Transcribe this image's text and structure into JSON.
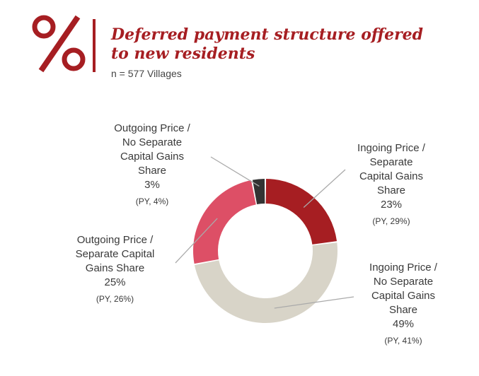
{
  "header": {
    "icon": "percent-icon",
    "title_line1": "Deferred payment structure offered",
    "title_line2": "to new residents",
    "subtitle": "n = 577 Villages"
  },
  "colors": {
    "accent": "#a61e22",
    "slice_ingoing_sep": "#a61e22",
    "slice_ingoing_nosep": "#d8d4c8",
    "slice_outgoing_sep": "#dd4f66",
    "slice_outgoing_nosep": "#333333",
    "leader": "#aaaaaa"
  },
  "chart_data": {
    "type": "pie",
    "categories": [
      "Ingoing Price / Separate Capital Gains Share",
      "Ingoing Price / No Separate Capital Gains Share",
      "Outgoing Price / Separate Capital Gains Share",
      "Outgoing Price / No Separate Capital Gains Share"
    ],
    "values": [
      23,
      49,
      25,
      3
    ],
    "prior_year": [
      29,
      41,
      26,
      4
    ],
    "value_labels": [
      "23%",
      "49%",
      "25%",
      "3%"
    ],
    "prior_year_labels": [
      "(PY, 29%)",
      "(PY, 41%)",
      "(PY, 26%)",
      "(PY, 4%)"
    ],
    "label_lines": [
      [
        "Ingoing Price /",
        "Separate",
        "Capital Gains",
        "Share"
      ],
      [
        "Ingoing Price /",
        "No Separate",
        "Capital Gains",
        "Share"
      ],
      [
        "Outgoing Price /",
        "Separate Capital",
        "Gains Share"
      ],
      [
        "Outgoing Price /",
        "No Separate",
        "Capital Gains",
        "Share"
      ]
    ],
    "donut": true
  }
}
